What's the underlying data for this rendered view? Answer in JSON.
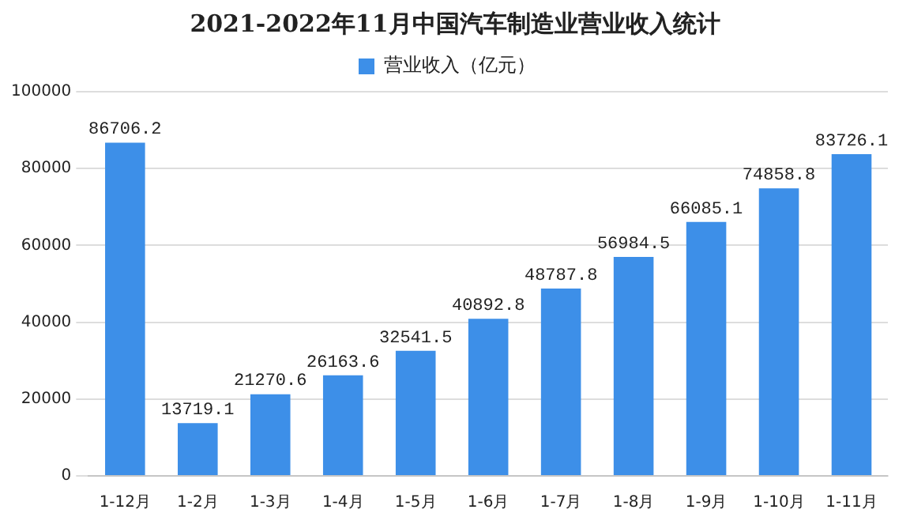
{
  "chart_data": {
    "type": "bar",
    "title": "2021-2022年11月中国汽车制造业营业收入统计",
    "categories": [
      "1-12月",
      "1-2月",
      "1-3月",
      "1-4月",
      "1-5月",
      "1-6月",
      "1-7月",
      "1-8月",
      "1-9月",
      "1-10月",
      "1-11月"
    ],
    "series": [
      {
        "name": "营业收入（亿元）",
        "color": "#3d8fe8",
        "values": [
          86706.2,
          13719.1,
          21270.6,
          26163.6,
          32541.5,
          40892.8,
          48787.8,
          56984.5,
          66085.1,
          74858.8,
          83726.1
        ]
      }
    ],
    "ylim": [
      0,
      100000
    ],
    "yticks": [
      0,
      20000,
      40000,
      60000,
      80000,
      100000
    ],
    "grid": "y",
    "legend": "top",
    "data_labels": true
  }
}
